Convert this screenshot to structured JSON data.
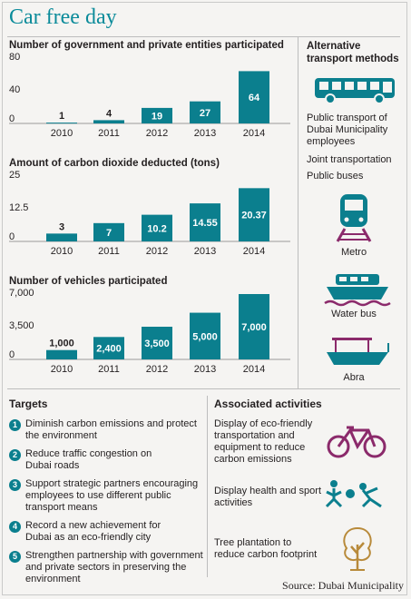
{
  "title": "Car free day",
  "colors": {
    "teal": "#0b7f8e",
    "title": "#0b8b9a",
    "purple": "#8b2a6b"
  },
  "chart_data": [
    {
      "type": "bar",
      "title": "Number of government and private entities participated",
      "categories": [
        "2010",
        "2011",
        "2012",
        "2013",
        "2014"
      ],
      "values": [
        1,
        4,
        19,
        27,
        64
      ],
      "labels": [
        "1",
        "4",
        "19",
        "27",
        "64"
      ],
      "yticks": [
        "80",
        "40",
        "0"
      ],
      "ylim": [
        0,
        80
      ]
    },
    {
      "type": "bar",
      "title": "Amount of carbon dioxide deducted (tons)",
      "categories": [
        "2010",
        "2011",
        "2012",
        "2013",
        "2014"
      ],
      "values": [
        3,
        7,
        10.2,
        14.55,
        20.37
      ],
      "labels": [
        "3",
        "7",
        "10.2",
        "14.55",
        "20.37"
      ],
      "yticks": [
        "25",
        "12.5",
        "0"
      ],
      "ylim": [
        0,
        25
      ]
    },
    {
      "type": "bar",
      "title": "Number of vehicles participated",
      "categories": [
        "2010",
        "2011",
        "2012",
        "2013",
        "2014"
      ],
      "values": [
        1000,
        2400,
        3500,
        5000,
        7000
      ],
      "labels": [
        "1,000",
        "2,400",
        "3,500",
        "5,000",
        "7,000"
      ],
      "yticks": [
        "7,000",
        "3,500",
        "0"
      ],
      "ylim": [
        0,
        7000
      ]
    }
  ],
  "sidebar": {
    "heading_line1": "Alternative",
    "heading_line2": "transport methods",
    "items": [
      "Public transport of Dubai Municipality employees",
      "Joint transportation",
      "Public buses"
    ],
    "metro": "Metro",
    "waterbus": "Water bus",
    "abra": "Abra"
  },
  "targets": {
    "heading": "Targets",
    "items": [
      {
        "num": "1",
        "text": "Diminish carbon emissions and protect the environment"
      },
      {
        "num": "2",
        "text": "Reduce traffic congestion on Dubai roads"
      },
      {
        "num": "3",
        "text": "Support strategic partners encouraging employees to use different public transport means"
      },
      {
        "num": "4",
        "text": "Record a new achievement for Dubai as an eco-friendly city"
      },
      {
        "num": "5",
        "text": "Strengthen partnership with government and private sectors in preserving the environment"
      }
    ]
  },
  "activities": {
    "heading": "Associated activities",
    "items": [
      "Display of eco-friendly transportation and equipment to reduce carbon emissions",
      "Display health and sport activities",
      "Tree plantation to reduce carbon footprint"
    ]
  },
  "source": "Source: Dubai Municipality"
}
